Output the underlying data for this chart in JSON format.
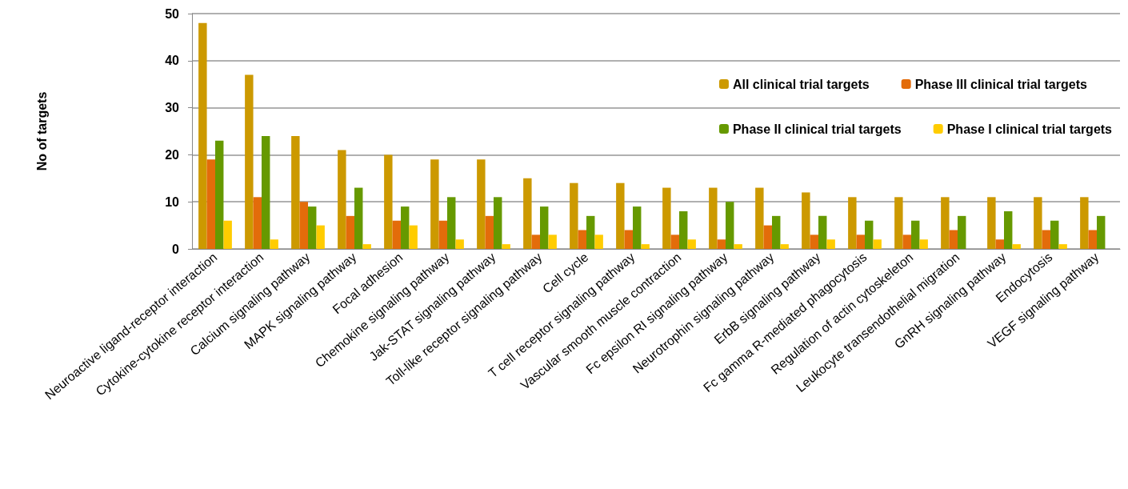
{
  "chart_data": {
    "type": "bar",
    "ylabel": "No of targets",
    "categories": [
      "Neuroactive ligand-receptor interaction",
      "Cytokine-cytokine receptor interaction",
      "Calcium signaling pathway",
      "MAPK signaling pathway",
      "Focal adhesion",
      "Chemokine signaling pathway",
      "Jak-STAT signaling pathway",
      "Toll-like receptor signaling pathway",
      "Cell cycle",
      "T cell receptor signaling pathway",
      "Vascular smooth muscle contraction",
      "Fc epsilon RI signaling pathway",
      "Neurotrophin signaling pathway",
      "ErbB signaling pathway",
      "Fc gamma R-mediated phagocytosis",
      "Regulation of actin cytoskeleton",
      "Leukocyte transendothelial migration",
      "GnRH signaling pathway",
      "Endocytosis",
      "VEGF signaling pathway"
    ],
    "series": [
      {
        "name": "All clinical trial targets",
        "color": "#cc9900",
        "values": [
          48,
          37,
          24,
          21,
          20,
          19,
          19,
          15,
          14,
          14,
          13,
          13,
          13,
          12,
          11,
          11,
          11,
          11,
          11,
          11
        ]
      },
      {
        "name": "Phase III clinical trial targets",
        "color": "#e36c0a",
        "values": [
          19,
          11,
          10,
          7,
          6,
          6,
          7,
          3,
          4,
          4,
          3,
          2,
          5,
          3,
          3,
          3,
          4,
          2,
          4,
          4
        ]
      },
      {
        "name": "Phase II clinical trial targets",
        "color": "#669900",
        "values": [
          23,
          24,
          9,
          13,
          9,
          11,
          11,
          9,
          7,
          9,
          8,
          10,
          7,
          7,
          6,
          6,
          7,
          8,
          6,
          7
        ]
      },
      {
        "name": "Phase I clinical trial targets",
        "color": "#ffcc00",
        "values": [
          6,
          2,
          5,
          1,
          5,
          2,
          1,
          3,
          3,
          1,
          2,
          1,
          1,
          2,
          2,
          2,
          0,
          1,
          1,
          0
        ]
      }
    ],
    "ylim": [
      0,
      50
    ],
    "yticks": [
      0,
      10,
      20,
      30,
      40,
      50
    ],
    "grid": "y",
    "legend": "top right"
  }
}
